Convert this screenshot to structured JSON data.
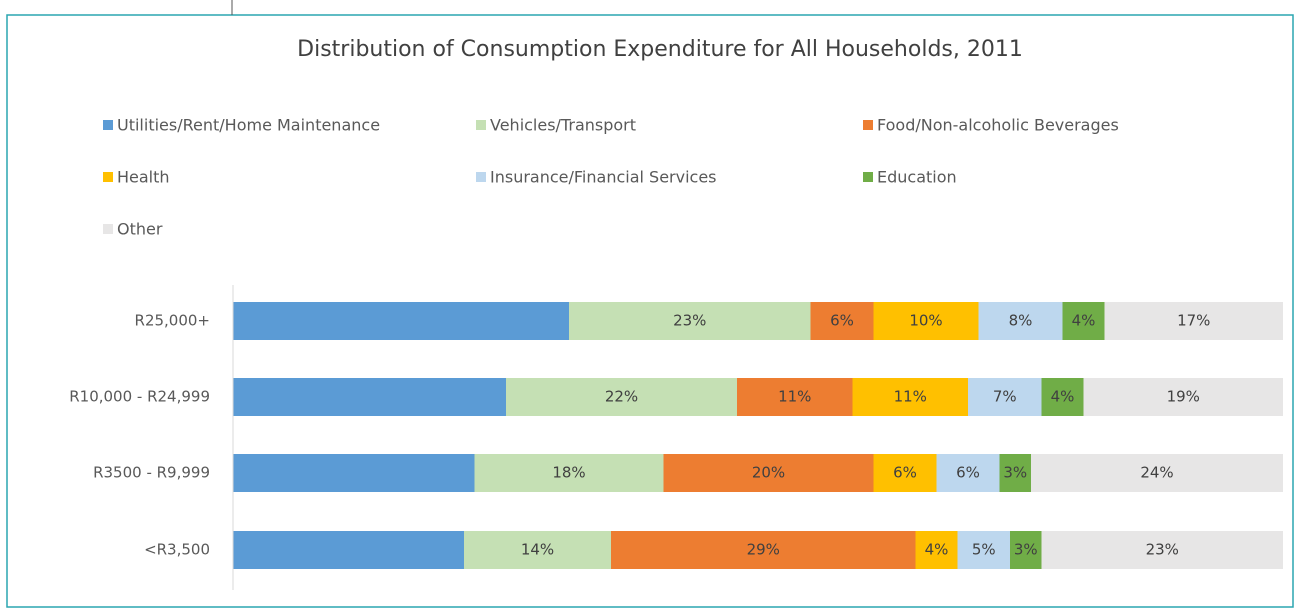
{
  "chart_data": {
    "type": "stacked-bar-horizontal",
    "title": "Distribution of Consumption Expenditure for All Households, 2011",
    "categories": [
      "R25,000+",
      "R10,000 - R24,999",
      "R3500 - R9,999",
      "<R3,500"
    ],
    "xlim": [
      0,
      100
    ],
    "legend": "top",
    "series": [
      {
        "name": "Utilities/Rent/Home Maintenance",
        "color": "#5b9bd5",
        "values": [
          32,
          26,
          23,
          22
        ]
      },
      {
        "name": "Vehicles/Transport",
        "color": "#c5e0b4",
        "values": [
          23,
          22,
          18,
          14
        ],
        "value_labels": [
          "23%",
          "22%",
          "18%",
          "14%"
        ]
      },
      {
        "name": "Food/Non-alcoholic Beverages",
        "color": "#ed7d31",
        "values": [
          6,
          11,
          20,
          29
        ],
        "value_labels": [
          "6%",
          "11%",
          "20%",
          "29%"
        ]
      },
      {
        "name": "Health",
        "color": "#ffc000",
        "values": [
          10,
          11,
          6,
          4
        ],
        "value_labels": [
          "10%",
          "11%",
          "6%",
          "4%"
        ]
      },
      {
        "name": "Insurance/Financial Services",
        "color": "#bdd7ee",
        "values": [
          8,
          7,
          6,
          5
        ],
        "value_labels": [
          "8%",
          "7%",
          "6%",
          "5%"
        ]
      },
      {
        "name": "Education",
        "color": "#70ad47",
        "values": [
          4,
          4,
          3,
          3
        ],
        "value_labels": [
          "4%",
          "4%",
          "3%",
          "3%"
        ]
      },
      {
        "name": "Other",
        "color": "#e7e6e6",
        "values": [
          17,
          19,
          24,
          23
        ],
        "value_labels": [
          "17%",
          "19%",
          "24%",
          "23%"
        ]
      }
    ]
  }
}
